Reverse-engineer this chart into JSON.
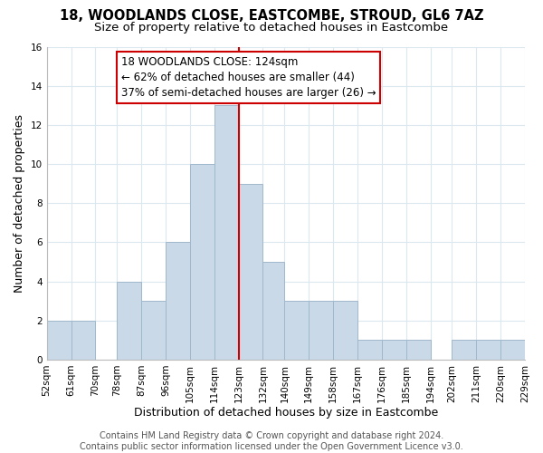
{
  "title": "18, WOODLANDS CLOSE, EASTCOMBE, STROUD, GL6 7AZ",
  "subtitle": "Size of property relative to detached houses in Eastcombe",
  "xlabel": "Distribution of detached houses by size in Eastcombe",
  "ylabel": "Number of detached properties",
  "bin_edges": [
    52,
    61,
    70,
    78,
    87,
    96,
    105,
    114,
    123,
    132,
    140,
    149,
    158,
    167,
    176,
    185,
    194,
    202,
    211,
    220,
    229
  ],
  "counts": [
    2,
    2,
    0,
    4,
    3,
    6,
    10,
    13,
    9,
    5,
    3,
    3,
    3,
    1,
    1,
    1,
    0,
    1,
    1,
    1
  ],
  "bar_color": "#c9d9e8",
  "bar_edge_color": "#a0b8cc",
  "property_line_x": 123,
  "property_line_color": "#cc0000",
  "annotation_line1": "18 WOODLANDS CLOSE: 124sqm",
  "annotation_line2": "← 62% of detached houses are smaller (44)",
  "annotation_line3": "37% of semi-detached houses are larger (26) →",
  "annotation_box_color": "#ffffff",
  "annotation_box_edge_color": "#cc0000",
  "tick_labels": [
    "52sqm",
    "61sqm",
    "70sqm",
    "78sqm",
    "87sqm",
    "96sqm",
    "105sqm",
    "114sqm",
    "123sqm",
    "132sqm",
    "140sqm",
    "149sqm",
    "158sqm",
    "167sqm",
    "176sqm",
    "185sqm",
    "194sqm",
    "202sqm",
    "211sqm",
    "220sqm",
    "229sqm"
  ],
  "ylim": [
    0,
    16
  ],
  "yticks": [
    0,
    2,
    4,
    6,
    8,
    10,
    12,
    14,
    16
  ],
  "footer_text": "Contains HM Land Registry data © Crown copyright and database right 2024.\nContains public sector information licensed under the Open Government Licence v3.0.",
  "bg_color": "#ffffff",
  "grid_color": "#dce8f0",
  "title_fontsize": 10.5,
  "subtitle_fontsize": 9.5,
  "axis_label_fontsize": 9,
  "tick_fontsize": 7.5,
  "footer_fontsize": 7,
  "annotation_fontsize": 8.5
}
